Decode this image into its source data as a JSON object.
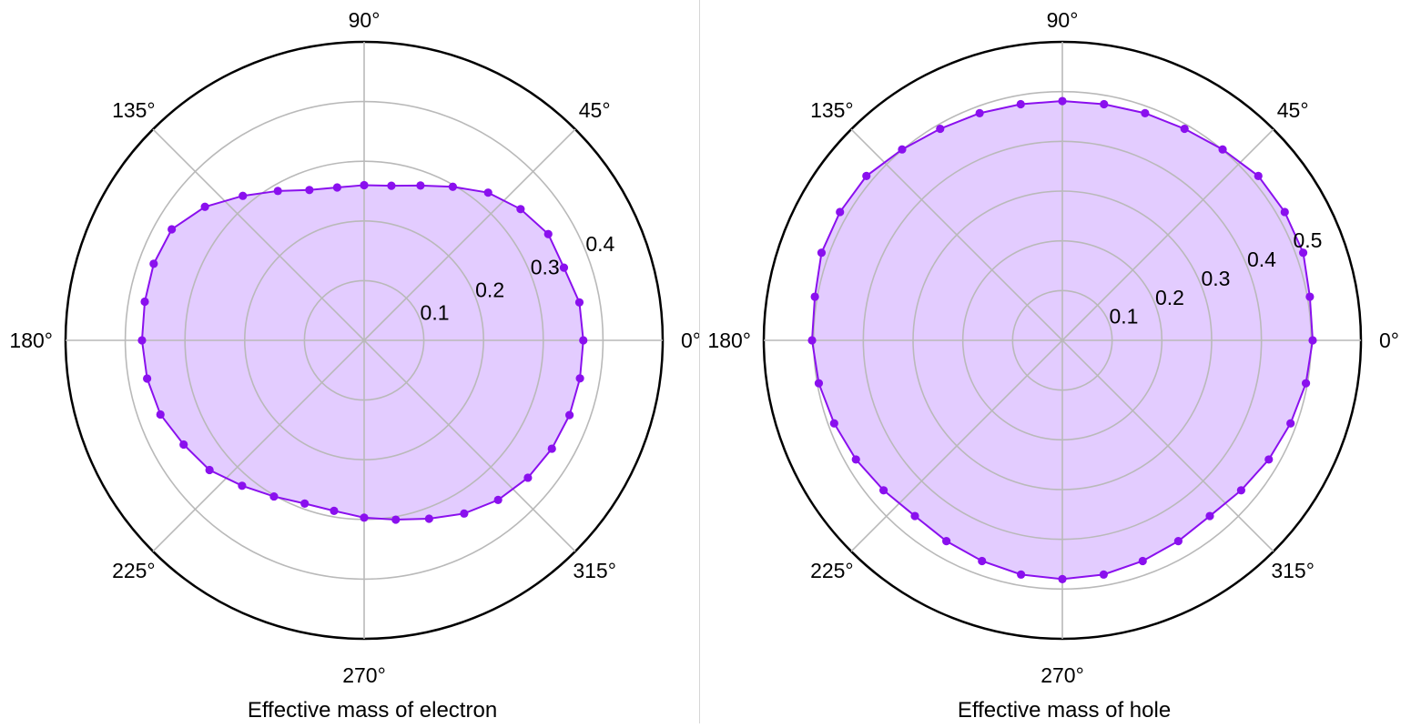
{
  "chart_data": [
    {
      "type": "polar-line",
      "title": "Effective mass of electron",
      "rlim": [
        0,
        0.5
      ],
      "r_ticks": [
        "0.1",
        "0.2",
        "0.3",
        "0.4"
      ],
      "angle_ticks": [
        "0°",
        "45°",
        "90°",
        "135°",
        "180°",
        "225°",
        "270°",
        "315°"
      ],
      "grid": true,
      "fill_color": "#e3ccff",
      "line_color": "#8a10ee",
      "marker_color": "#8a10ee",
      "theta_deg": [
        0,
        10,
        20,
        30,
        40,
        50,
        60,
        70,
        80,
        90,
        100,
        110,
        120,
        130,
        140,
        150,
        160,
        170,
        180,
        190,
        200,
        210,
        220,
        230,
        240,
        250,
        260,
        270,
        280,
        290,
        300,
        310,
        320,
        330,
        340,
        350
      ],
      "r": [
        0.367,
        0.366,
        0.356,
        0.356,
        0.342,
        0.323,
        0.297,
        0.276,
        0.263,
        0.26,
        0.26,
        0.268,
        0.289,
        0.316,
        0.348,
        0.372,
        0.375,
        0.373,
        0.372,
        0.369,
        0.363,
        0.349,
        0.338,
        0.318,
        0.302,
        0.291,
        0.29,
        0.297,
        0.305,
        0.318,
        0.335,
        0.349,
        0.358,
        0.363,
        0.366,
        0.367
      ]
    },
    {
      "type": "polar-line",
      "title": "Effective mass of hole",
      "rlim": [
        0,
        0.6
      ],
      "r_ticks": [
        "0.1",
        "0.2",
        "0.3",
        "0.4",
        "0.5"
      ],
      "angle_ticks": [
        "0°",
        "45°",
        "90°",
        "135°",
        "180°",
        "225°",
        "270°",
        "315°"
      ],
      "grid": true,
      "fill_color": "#e3ccff",
      "line_color": "#8a10ee",
      "marker_color": "#8a10ee",
      "theta_deg": [
        0,
        10,
        20,
        30,
        40,
        50,
        60,
        70,
        80,
        90,
        100,
        110,
        120,
        130,
        140,
        150,
        160,
        170,
        180,
        190,
        200,
        210,
        220,
        230,
        240,
        250,
        260,
        270,
        280,
        290,
        300,
        310,
        320,
        330,
        340,
        350
      ],
      "r": [
        0.503,
        0.505,
        0.515,
        0.516,
        0.514,
        0.501,
        0.491,
        0.486,
        0.482,
        0.481,
        0.482,
        0.486,
        0.491,
        0.501,
        0.514,
        0.516,
        0.515,
        0.505,
        0.503,
        0.497,
        0.488,
        0.479,
        0.469,
        0.461,
        0.466,
        0.472,
        0.478,
        0.48,
        0.478,
        0.472,
        0.466,
        0.461,
        0.469,
        0.479,
        0.488,
        0.497
      ]
    }
  ]
}
